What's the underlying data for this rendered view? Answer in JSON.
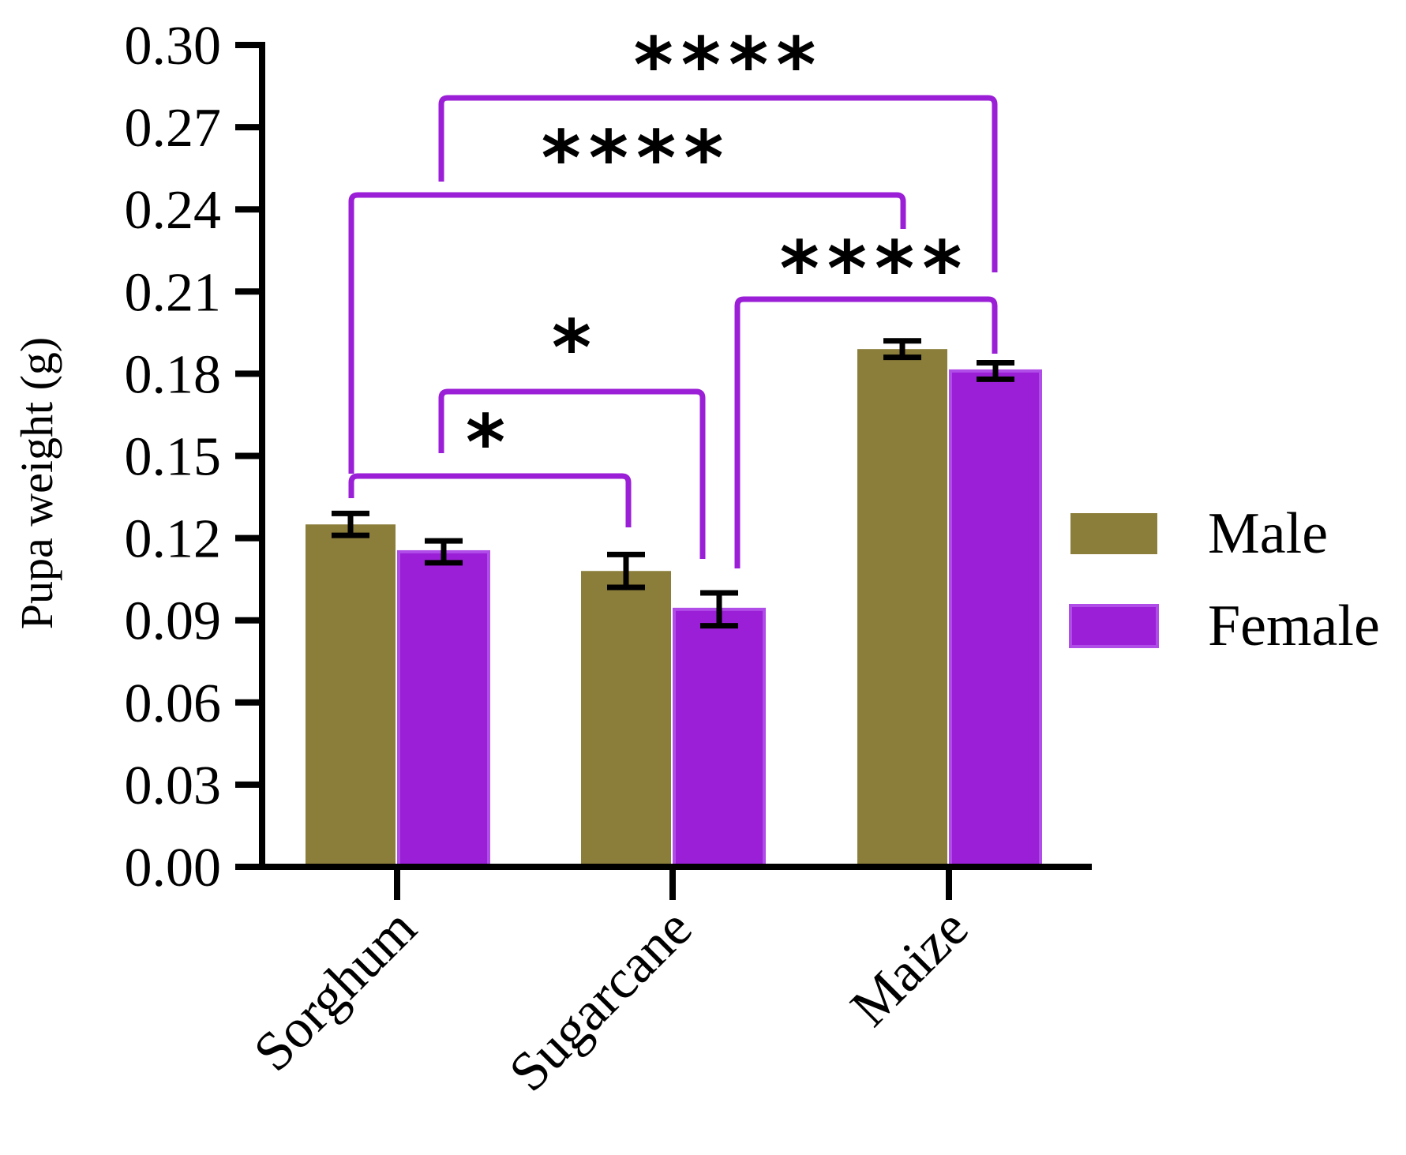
{
  "chart_data": {
    "type": "bar",
    "title": "",
    "xlabel": "",
    "ylabel": "Pupa weight (g)",
    "ylim": [
      0,
      0.3
    ],
    "yticks": [
      "0.00",
      "0.03",
      "0.06",
      "0.09",
      "0.12",
      "0.15",
      "0.18",
      "0.21",
      "0.24",
      "0.27",
      "0.30"
    ],
    "categories": [
      "Sorghum",
      "Sugarcane",
      "Maize"
    ],
    "series": [
      {
        "name": "Male",
        "color": "#8b7d3a",
        "values": [
          0.125,
          0.108,
          0.189
        ],
        "errors": [
          0.004,
          0.006,
          0.003
        ]
      },
      {
        "name": "Female",
        "color": "#9a1fd6",
        "values": [
          0.115,
          0.094,
          0.181
        ],
        "errors": [
          0.004,
          0.006,
          0.003
        ]
      }
    ],
    "legend": {
      "placement": "right",
      "entries": [
        "Male",
        "Female"
      ]
    },
    "significance": [
      {
        "label": "*",
        "from": "Sorghum Male",
        "to": "Sugarcane Male"
      },
      {
        "label": "*",
        "from": "Sorghum Female",
        "to": "Sugarcane Female"
      },
      {
        "label": "****",
        "from": "Sugarcane Female",
        "to": "Maize Female"
      },
      {
        "label": "****",
        "from": "Sorghum Male",
        "to": "Maize Male"
      },
      {
        "label": "****",
        "from": "Sorghum Female",
        "to": "Maize Female"
      }
    ],
    "bracket_color": "#9a1fd6"
  }
}
